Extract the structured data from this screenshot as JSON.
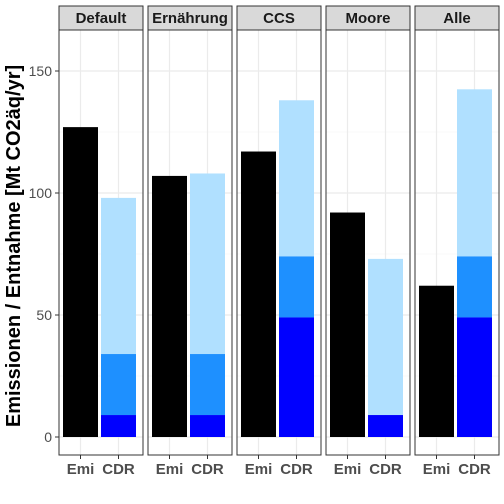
{
  "chart_data": {
    "type": "bar",
    "ylabel": "Emissionen / Entnahme [Mt CO2äq/yr]",
    "xlabel": "",
    "ylim": [
      0,
      165
    ],
    "yticks": [
      0,
      50,
      100,
      150
    ],
    "categories": [
      "Emi",
      "CDR"
    ],
    "grid": true,
    "legend": "none",
    "colors": {
      "emi": "#000000",
      "cdr_bottom": "#0000ff",
      "cdr_middle": "#1e90ff",
      "cdr_top": "#b0e0ff",
      "strip_bg": "#d9d9d9",
      "grid": "#ebebeb",
      "panel_border": "#333333"
    },
    "facets": [
      {
        "name": "Default",
        "emi": 127,
        "cdr": [
          9,
          34,
          98
        ]
      },
      {
        "name": "Ernährung",
        "emi": 107,
        "cdr": [
          9,
          34,
          108
        ]
      },
      {
        "name": "CCS",
        "emi": 117,
        "cdr": [
          49,
          74,
          138
        ]
      },
      {
        "name": "Moore",
        "emi": 92,
        "cdr": [
          9,
          9,
          73
        ]
      },
      {
        "name": "Alle",
        "emi": 62,
        "cdr": [
          49,
          74,
          142.5
        ]
      }
    ]
  }
}
